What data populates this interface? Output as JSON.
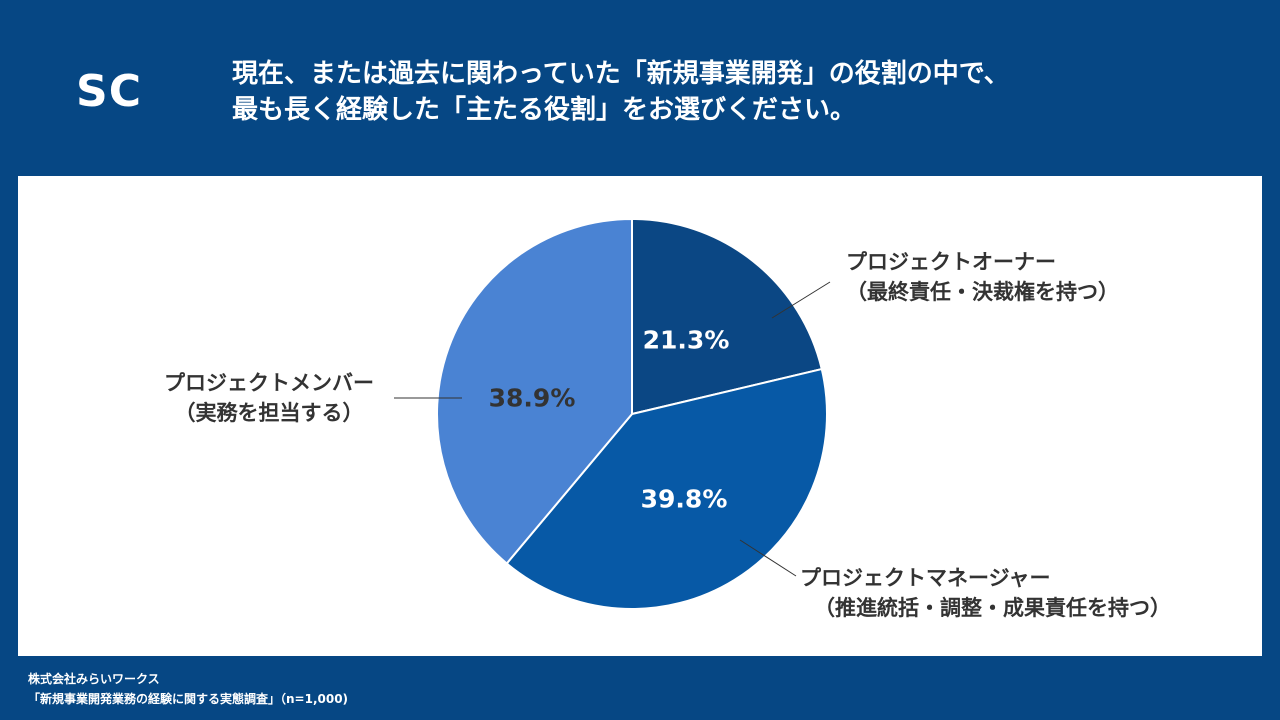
{
  "header": {
    "badge": "SC",
    "title": "現在、または過去に関わっていた「新規事業開発」の役割の中で、\n最も長く経験した「主たる役割」をお選びください。"
  },
  "chart_data": {
    "type": "pie",
    "start": "top",
    "direction": "clockwise",
    "slices": [
      {
        "name": "プロジェクトオーナー",
        "sub": "（最終責任・決裁権を持つ）",
        "value": 21.3,
        "label": "21.3%",
        "color": "#0b4784",
        "text_color": "#ffffff"
      },
      {
        "name": "プロジェクトマネージャー",
        "sub": "（推進統括・調整・成果責任を持つ）",
        "value": 39.8,
        "label": "39.8%",
        "color": "#0759a6",
        "text_color": "#ffffff"
      },
      {
        "name": "プロジェクトメンバー",
        "sub": "（実務を担当する）",
        "value": 38.9,
        "label": "38.9%",
        "color": "#4a83d3",
        "text_color": "#333333"
      }
    ]
  },
  "footer": {
    "company": "株式会社みらいワークス",
    "source": "「新規事業開発業務の経験に関する実態調査」（n=1,000)"
  }
}
